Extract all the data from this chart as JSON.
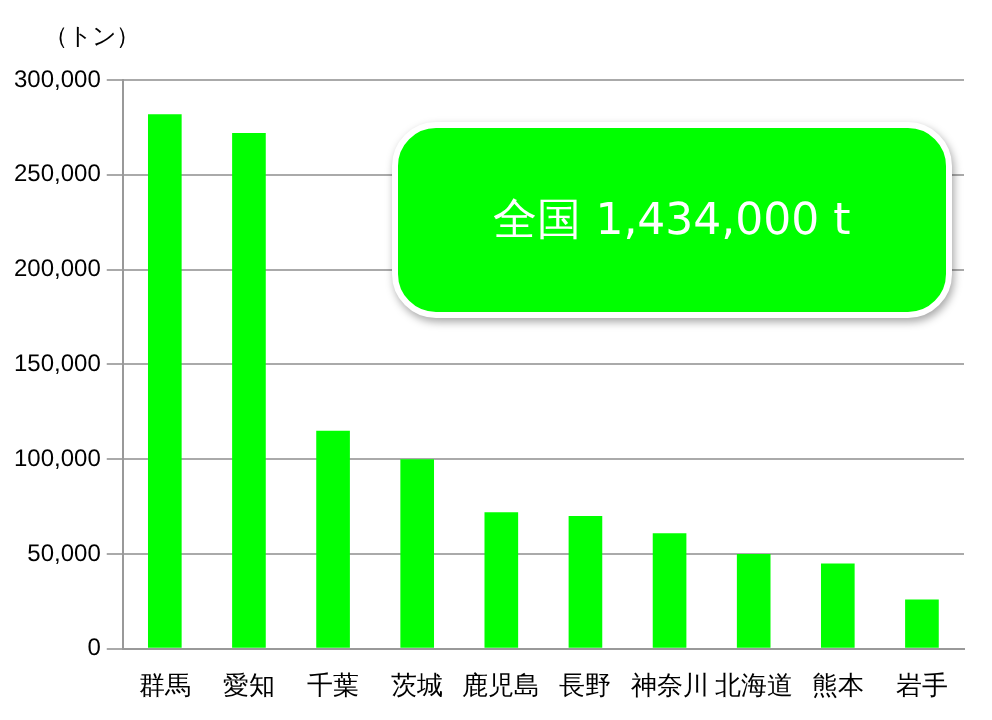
{
  "chart_data": {
    "type": "bar",
    "ylabel": "（トン）",
    "categories": [
      "群馬",
      "愛知",
      "千葉",
      "茨城",
      "鹿児島",
      "長野",
      "神奈川",
      "北海道",
      "熊本",
      "岩手"
    ],
    "values": [
      282000,
      272000,
      115000,
      100000,
      72000,
      70000,
      61000,
      50000,
      45000,
      26000
    ],
    "color": "#00ff00",
    "ylim": [
      0,
      300000
    ],
    "yticks": [
      {
        "value": 0,
        "label": "0"
      },
      {
        "value": 50000,
        "label": "50,000"
      },
      {
        "value": 100000,
        "label": "100,000"
      },
      {
        "value": 150000,
        "label": "150,000"
      },
      {
        "value": 200000,
        "label": "200,000"
      },
      {
        "value": 250000,
        "label": "250,000"
      },
      {
        "value": 300000,
        "label": "300,000"
      }
    ],
    "grid": "y",
    "annotations": [
      "全国 1,434,000 t"
    ]
  }
}
